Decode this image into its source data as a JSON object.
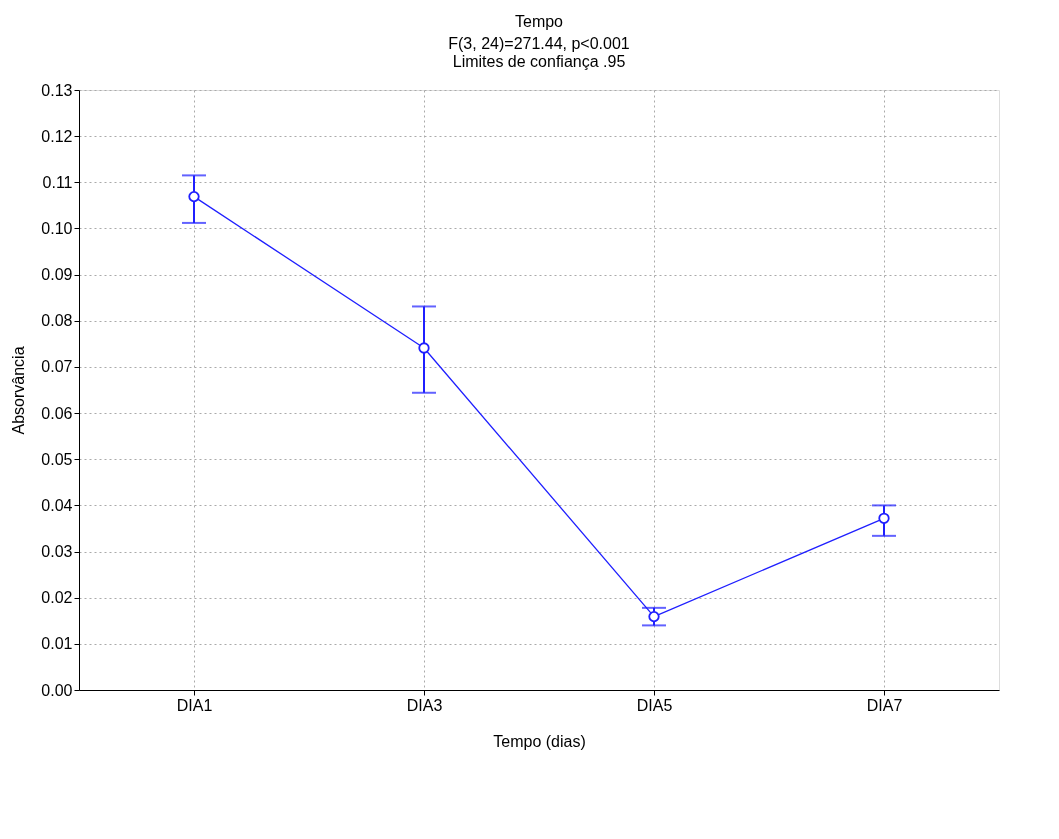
{
  "chart_data": {
    "type": "line",
    "title": "Tempo",
    "subtitle": "F(3, 24)=271.44, p<0.001\nLimites de confiança .95",
    "xlabel": "Tempo (dias)",
    "ylabel": "Absorvância",
    "categories": [
      "DIA1",
      "DIA3",
      "DIA5",
      "DIA7"
    ],
    "series": [
      {
        "color": "#1f1fff",
        "values": [
          0.1069,
          0.0741,
          0.0159,
          0.0372
        ],
        "errors": [
          [
            0.1012,
            0.1115
          ],
          [
            0.0644,
            0.0831
          ],
          [
            0.014,
            0.0178
          ],
          [
            0.0334,
            0.04
          ]
        ]
      }
    ],
    "ylim": [
      0,
      0.13
    ],
    "yticks": [
      {
        "value": 0,
        "label": "0.00"
      },
      {
        "value": 0.01,
        "label": "0.01"
      },
      {
        "value": 0.02,
        "label": "0.02"
      },
      {
        "value": 0.03,
        "label": "0.03"
      },
      {
        "value": 0.04,
        "label": "0.04"
      },
      {
        "value": 0.05,
        "label": "0.05"
      },
      {
        "value": 0.06,
        "label": "0.06"
      },
      {
        "value": 0.07,
        "label": "0.07"
      },
      {
        "value": 0.08,
        "label": "0.08"
      },
      {
        "value": 0.09,
        "label": "0.09"
      },
      {
        "value": 0.1,
        "label": "0.10"
      },
      {
        "value": 0.11,
        "label": "0.11"
      },
      {
        "value": 0.12,
        "label": "0.12"
      },
      {
        "value": 0.13,
        "label": "0.13"
      }
    ],
    "grid": true,
    "marker": "circle",
    "line_style": "solid"
  }
}
